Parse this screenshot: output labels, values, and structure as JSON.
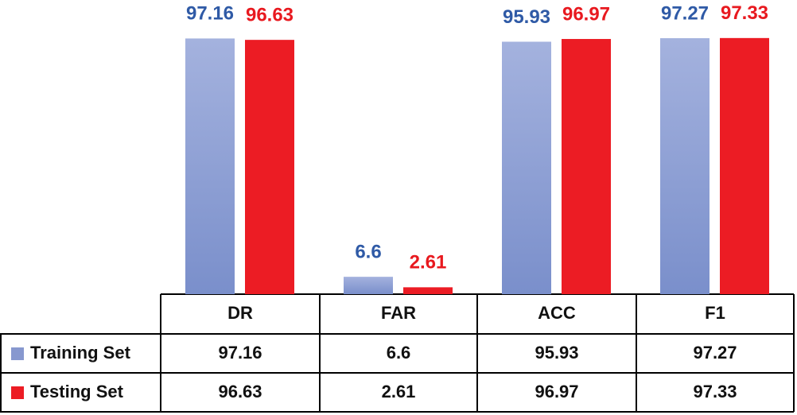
{
  "chart_data": {
    "type": "bar",
    "categories": [
      "DR",
      "FAR",
      "ACC",
      "F1"
    ],
    "series": [
      {
        "name": "Training Set",
        "color": "#8e9fd3",
        "label_color": "#2f5aa6",
        "values": [
          97.16,
          6.6,
          95.93,
          97.27
        ]
      },
      {
        "name": "Testing Set",
        "color": "#ec1c24",
        "label_color": "#e8191f",
        "values": [
          96.63,
          2.61,
          96.97,
          97.33
        ]
      }
    ]
  }
}
